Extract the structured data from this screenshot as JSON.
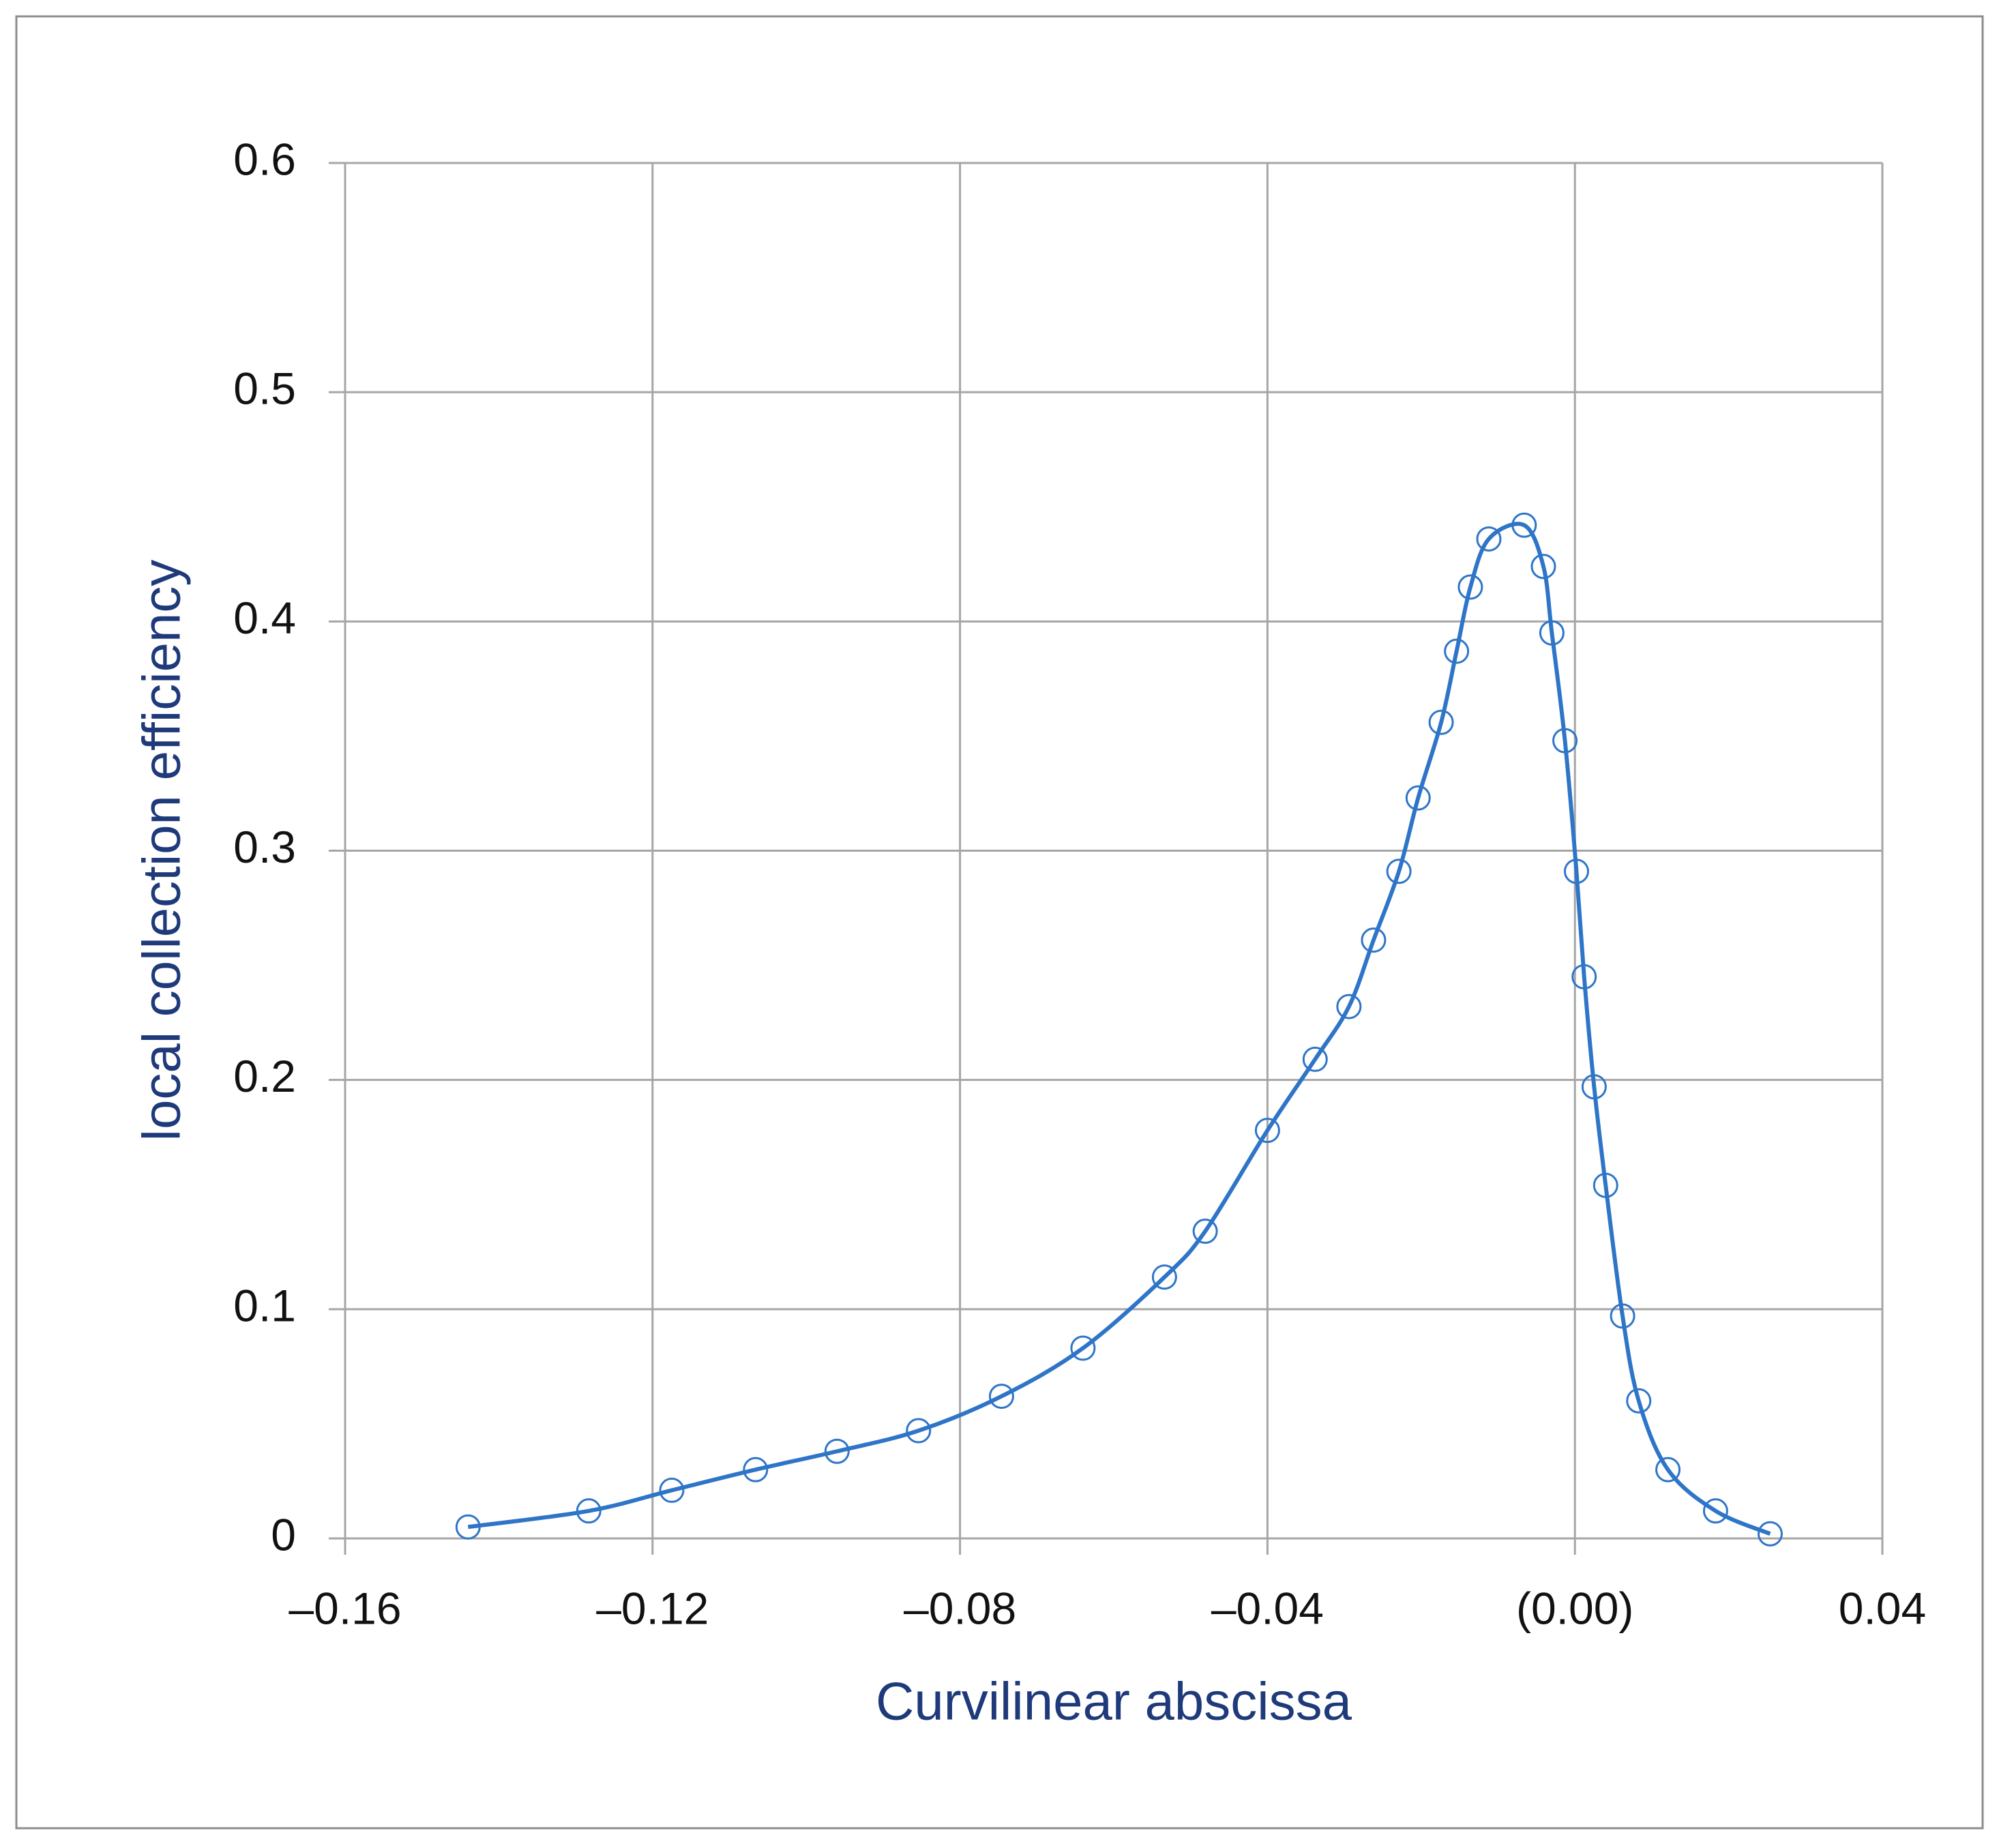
{
  "chart_data": {
    "type": "scatter",
    "smooth": true,
    "x_label": "Curvilinear abscissa",
    "y_label": "local collection efficiency",
    "color": "#2e75c8",
    "grid": true,
    "x": [
      -0.144,
      -0.1283,
      -0.1175,
      -0.1066,
      -0.096,
      -0.0854,
      -0.0746,
      -0.064,
      -0.0534,
      -0.0481,
      -0.04,
      -0.0338,
      -0.0294,
      -0.0262,
      -0.0229,
      -0.0204,
      -0.0174,
      -0.0154,
      -0.0136,
      -0.0112,
      -0.0066,
      -0.0041,
      -0.003,
      -0.0013,
      0.0002,
      0.0012,
      0.0025,
      0.004,
      0.0062,
      0.0083,
      0.0121,
      0.0183,
      0.0254
    ],
    "values": [
      0.005,
      0.012,
      0.021,
      0.03,
      0.038,
      0.047,
      0.062,
      0.083,
      0.114,
      0.134,
      0.178,
      0.209,
      0.232,
      0.261,
      0.291,
      0.323,
      0.356,
      0.387,
      0.415,
      0.436,
      0.442,
      0.424,
      0.395,
      0.348,
      0.291,
      0.245,
      0.197,
      0.154,
      0.097,
      0.06,
      0.03,
      0.012,
      0.002
    ],
    "xlim": [
      -0.16,
      0.04
    ],
    "ylim": [
      0,
      0.6
    ],
    "xticks": [
      {
        "value": -0.16,
        "label": "–0.16"
      },
      {
        "value": -0.12,
        "label": "–0.12"
      },
      {
        "value": -0.08,
        "label": "–0.08"
      },
      {
        "value": -0.04,
        "label": "–0.04"
      },
      {
        "value": 0,
        "label": "(0.00)"
      },
      0.04
    ],
    "yticks": [
      0,
      0.1,
      0.2,
      0.3,
      0.4,
      0.5,
      0.6
    ]
  }
}
